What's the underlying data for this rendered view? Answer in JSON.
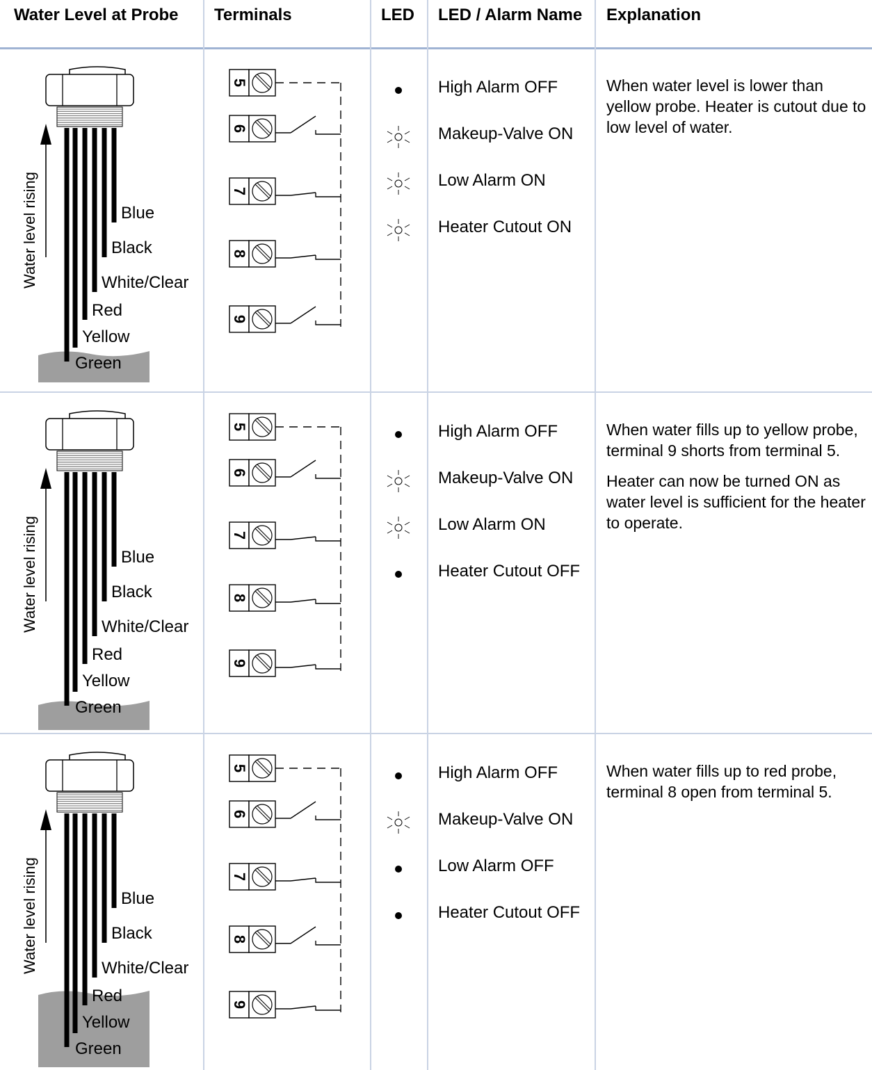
{
  "headers": {
    "water_level": "Water Level at Probe",
    "terminals": "Terminals",
    "led": "LED",
    "alarm_name": "LED / Alarm Name",
    "explanation": "Explanation"
  },
  "probe_labels": [
    "Blue",
    "Black",
    "White/Clear",
    "Red",
    "Yellow",
    "Green"
  ],
  "rising_label": "Water level rising",
  "terminal_numbers": [
    "5",
    "6",
    "7",
    "8",
    "9"
  ],
  "rows": [
    {
      "water_level": "below yellow probe",
      "leds": [
        {
          "name": "High Alarm OFF",
          "state": "off"
        },
        {
          "name": "Makeup-Valve ON",
          "state": "on"
        },
        {
          "name": "Low Alarm ON",
          "state": "on"
        },
        {
          "name": "Heater Cutout ON",
          "state": "on"
        }
      ],
      "explanation": [
        "When water level is lower than yellow probe. Heater is cutout due to low level of water."
      ]
    },
    {
      "water_level": "at yellow probe",
      "leds": [
        {
          "name": "High Alarm OFF",
          "state": "off"
        },
        {
          "name": "Makeup-Valve ON",
          "state": "on"
        },
        {
          "name": "Low Alarm ON",
          "state": "on"
        },
        {
          "name": "Heater Cutout OFF",
          "state": "off"
        }
      ],
      "explanation": [
        "When water fills up to yellow probe, terminal 9 shorts from terminal 5.",
        "Heater can now be turned ON as water level is sufficient for the heater to operate."
      ]
    },
    {
      "water_level": "at red probe",
      "leds": [
        {
          "name": "High Alarm OFF",
          "state": "off"
        },
        {
          "name": "Makeup-Valve ON",
          "state": "on"
        },
        {
          "name": "Low Alarm OFF",
          "state": "off"
        },
        {
          "name": "Heater Cutout OFF",
          "state": "off"
        }
      ],
      "explanation": [
        "When water fills up to red probe, terminal 8 open from terminal 5."
      ]
    }
  ]
}
